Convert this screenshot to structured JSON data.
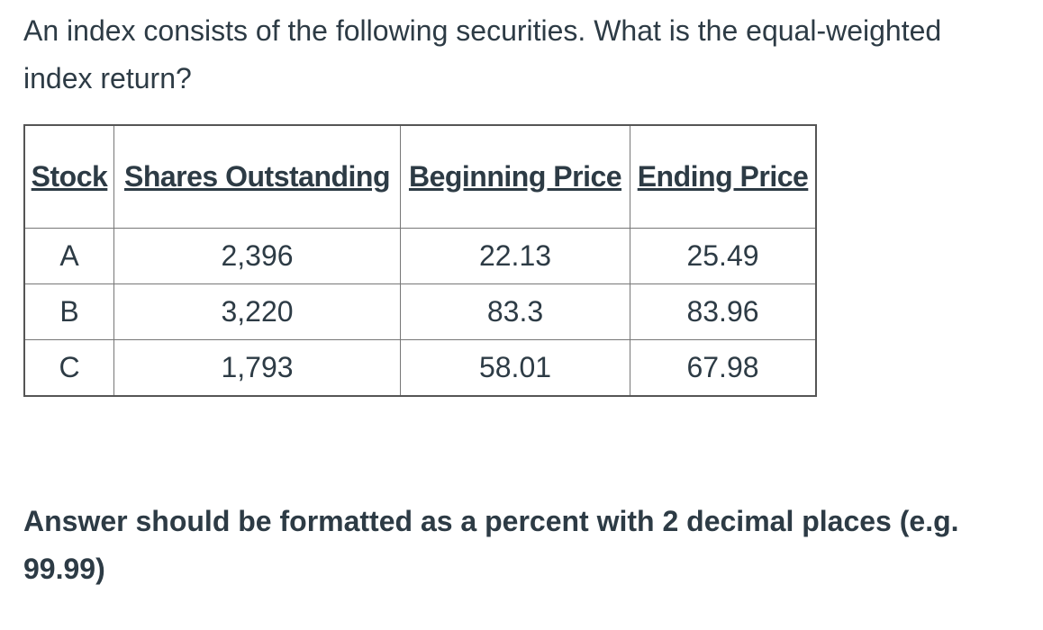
{
  "question": "An index consists of the following securities.  What is the equal-weighted index return?",
  "table": {
    "headers": [
      "Stock",
      "Shares Outstanding",
      "Beginning Price",
      "Ending Price"
    ],
    "rows": [
      [
        "A",
        "2,396",
        "22.13",
        "25.49"
      ],
      [
        "B",
        "3,220",
        "83.3",
        "83.96"
      ],
      [
        "C",
        "1,793",
        "58.01",
        "67.98"
      ]
    ]
  },
  "instructions": "Answer should be formatted as a percent with 2 decimal places (e.g. 99.99)"
}
